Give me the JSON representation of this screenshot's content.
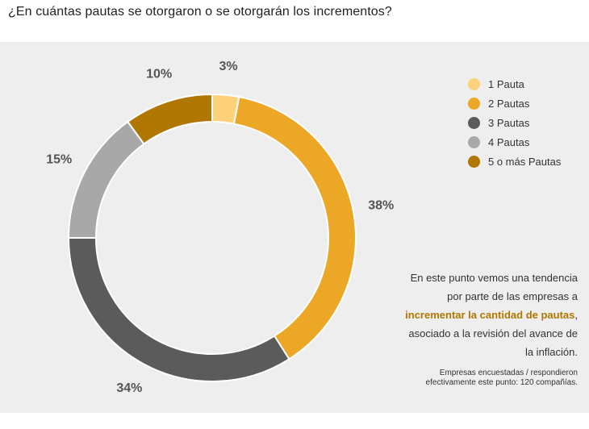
{
  "title": "¿En cuántas pautas se otorgaron o se otorgarán los incrementos?",
  "chart_data": {
    "type": "pie",
    "donut": true,
    "categories": [
      "1 Pauta",
      "2 Pautas",
      "3 Pautas",
      "4 Pautas",
      "5 o más Pautas"
    ],
    "values": [
      3,
      38,
      34,
      15,
      10
    ],
    "labels": [
      "3%",
      "38%",
      "34%",
      "15%",
      "10%"
    ],
    "colors": [
      "#fdd27a",
      "#eca727",
      "#5b5b5b",
      "#a8a8a8",
      "#b07705"
    ],
    "legend_position": "right"
  },
  "note": {
    "line1": "En este punto vemos una tendencia",
    "line2": "por parte de las empresas a",
    "highlight": "incrementar la cantidad de pautas",
    "line3_suffix": ",",
    "line4": "asociado a la revisión del avance de",
    "line5": "la inflación."
  },
  "source": {
    "line1": "Empresas encuestadas / respondieron",
    "line2": "efectivamente este punto: 120 compañías."
  }
}
